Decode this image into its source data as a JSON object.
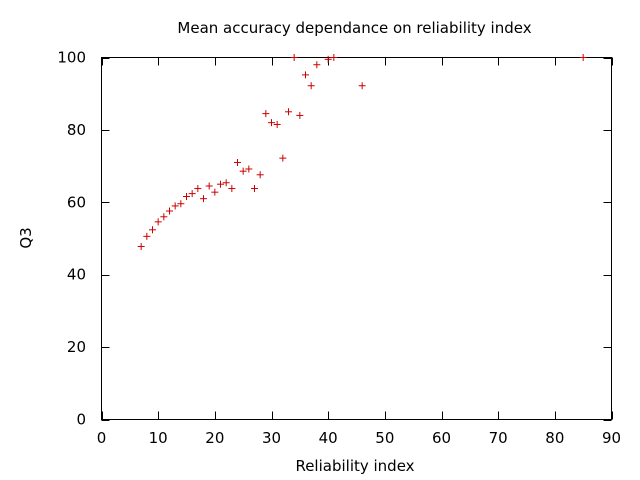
{
  "chart_data": {
    "type": "scatter",
    "title": "Mean accuracy dependance on reliability index",
    "xlabel": "Reliability index",
    "ylabel": "Q3",
    "xlim": [
      0,
      90
    ],
    "ylim": [
      0,
      100
    ],
    "xticks": [
      "0",
      "10",
      "20",
      "30",
      "40",
      "50",
      "60",
      "70",
      "80",
      "90"
    ],
    "yticks": [
      "0",
      "20",
      "40",
      "60",
      "80",
      "100"
    ],
    "grid": false,
    "legend": "none",
    "marker": "+",
    "point_color": "#cc0000",
    "series": [
      {
        "x": [
          7,
          8,
          9,
          10,
          11,
          12,
          13,
          14,
          15,
          16,
          17,
          18,
          19,
          20,
          21,
          22,
          23,
          24,
          25,
          26,
          27,
          28,
          29,
          30,
          31,
          32,
          33,
          34,
          35,
          36,
          37,
          38,
          40,
          41,
          46,
          85
        ],
        "y": [
          47.8,
          50.6,
          52.4,
          54.6,
          56,
          57.6,
          59,
          59.6,
          61.6,
          62.4,
          63.8,
          61,
          64.5,
          62.8,
          65,
          65.4,
          63.8,
          71,
          68.6,
          69.2,
          63.8,
          67.6,
          84.5,
          82,
          81.5,
          72.2,
          85,
          100,
          84,
          95.2,
          92.2,
          98,
          99.5,
          100,
          92.2,
          100
        ]
      }
    ]
  }
}
